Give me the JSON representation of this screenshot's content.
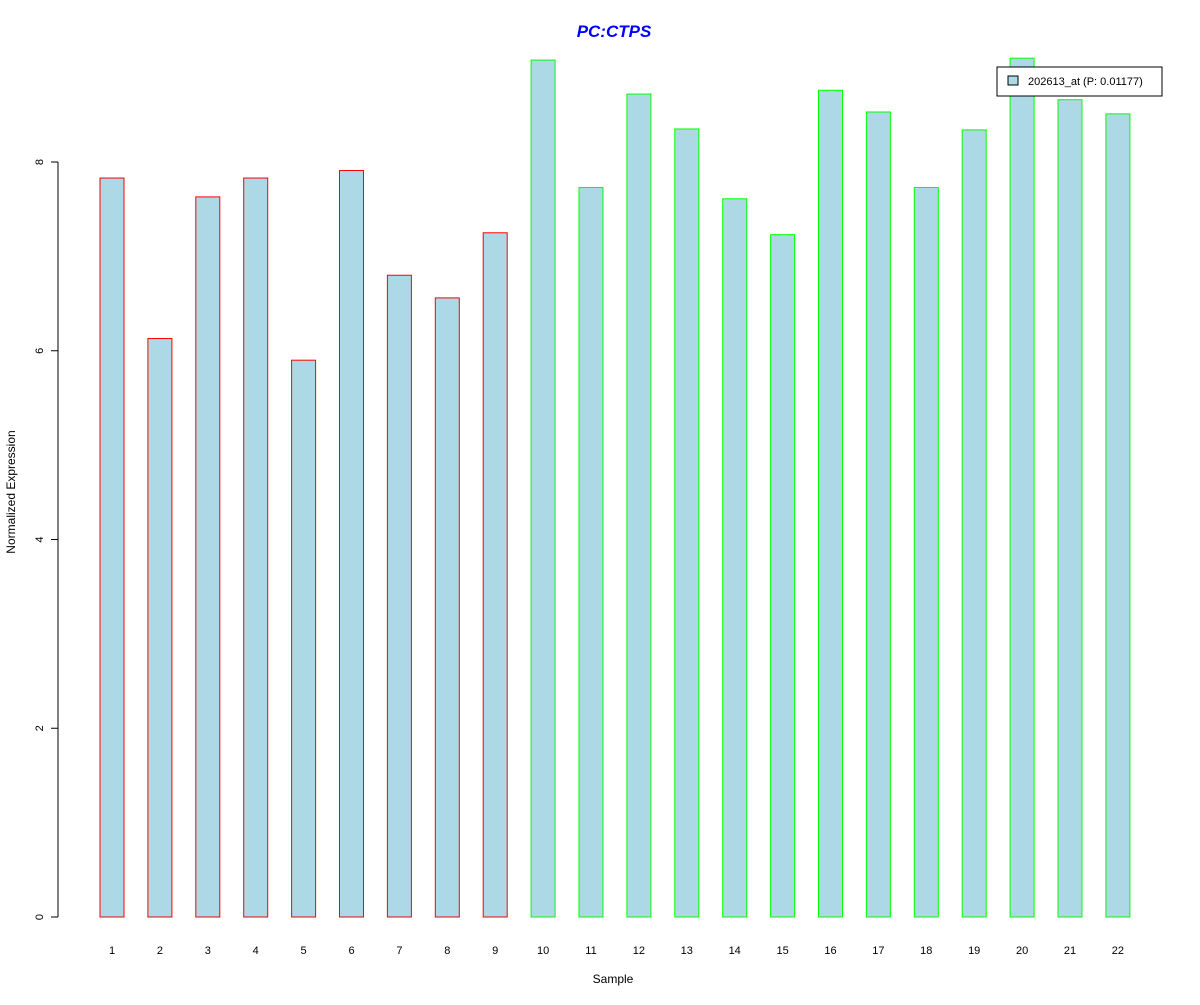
{
  "chart_data": {
    "type": "bar",
    "title": "PC:CTPS",
    "xlabel": "Sample",
    "ylabel": "Normalized Expression",
    "categories": [
      "1",
      "2",
      "3",
      "4",
      "5",
      "6",
      "7",
      "8",
      "9",
      "10",
      "11",
      "12",
      "13",
      "14",
      "15",
      "16",
      "17",
      "18",
      "19",
      "20",
      "21",
      "22"
    ],
    "series": [
      {
        "name": "202613_at (P: 0.01177)",
        "values": [
          7.83,
          6.13,
          7.63,
          7.83,
          5.9,
          7.91,
          6.8,
          6.56,
          7.25,
          9.08,
          7.73,
          8.72,
          8.35,
          7.61,
          7.23,
          8.76,
          8.53,
          7.73,
          8.34,
          9.1,
          8.66,
          8.51
        ]
      }
    ],
    "group_border_colors": [
      "#ff0000",
      "#ff0000",
      "#ff0000",
      "#ff0000",
      "#ff0000",
      "#ff0000",
      "#ff0000",
      "#ff0000",
      "#ff0000",
      "#00ff00",
      "#00ff00",
      "#00ff00",
      "#00ff00",
      "#00ff00",
      "#00ff00",
      "#00ff00",
      "#00ff00",
      "#00ff00",
      "#00ff00",
      "#00ff00",
      "#00ff00",
      "#00ff00"
    ],
    "bar_fill_color": "#add8e6",
    "title_color": "#0000ff",
    "yticks": [
      0,
      2,
      4,
      6,
      8
    ],
    "ylim": [
      0,
      9.1
    ],
    "grid": false,
    "legend_position": "top-right"
  }
}
